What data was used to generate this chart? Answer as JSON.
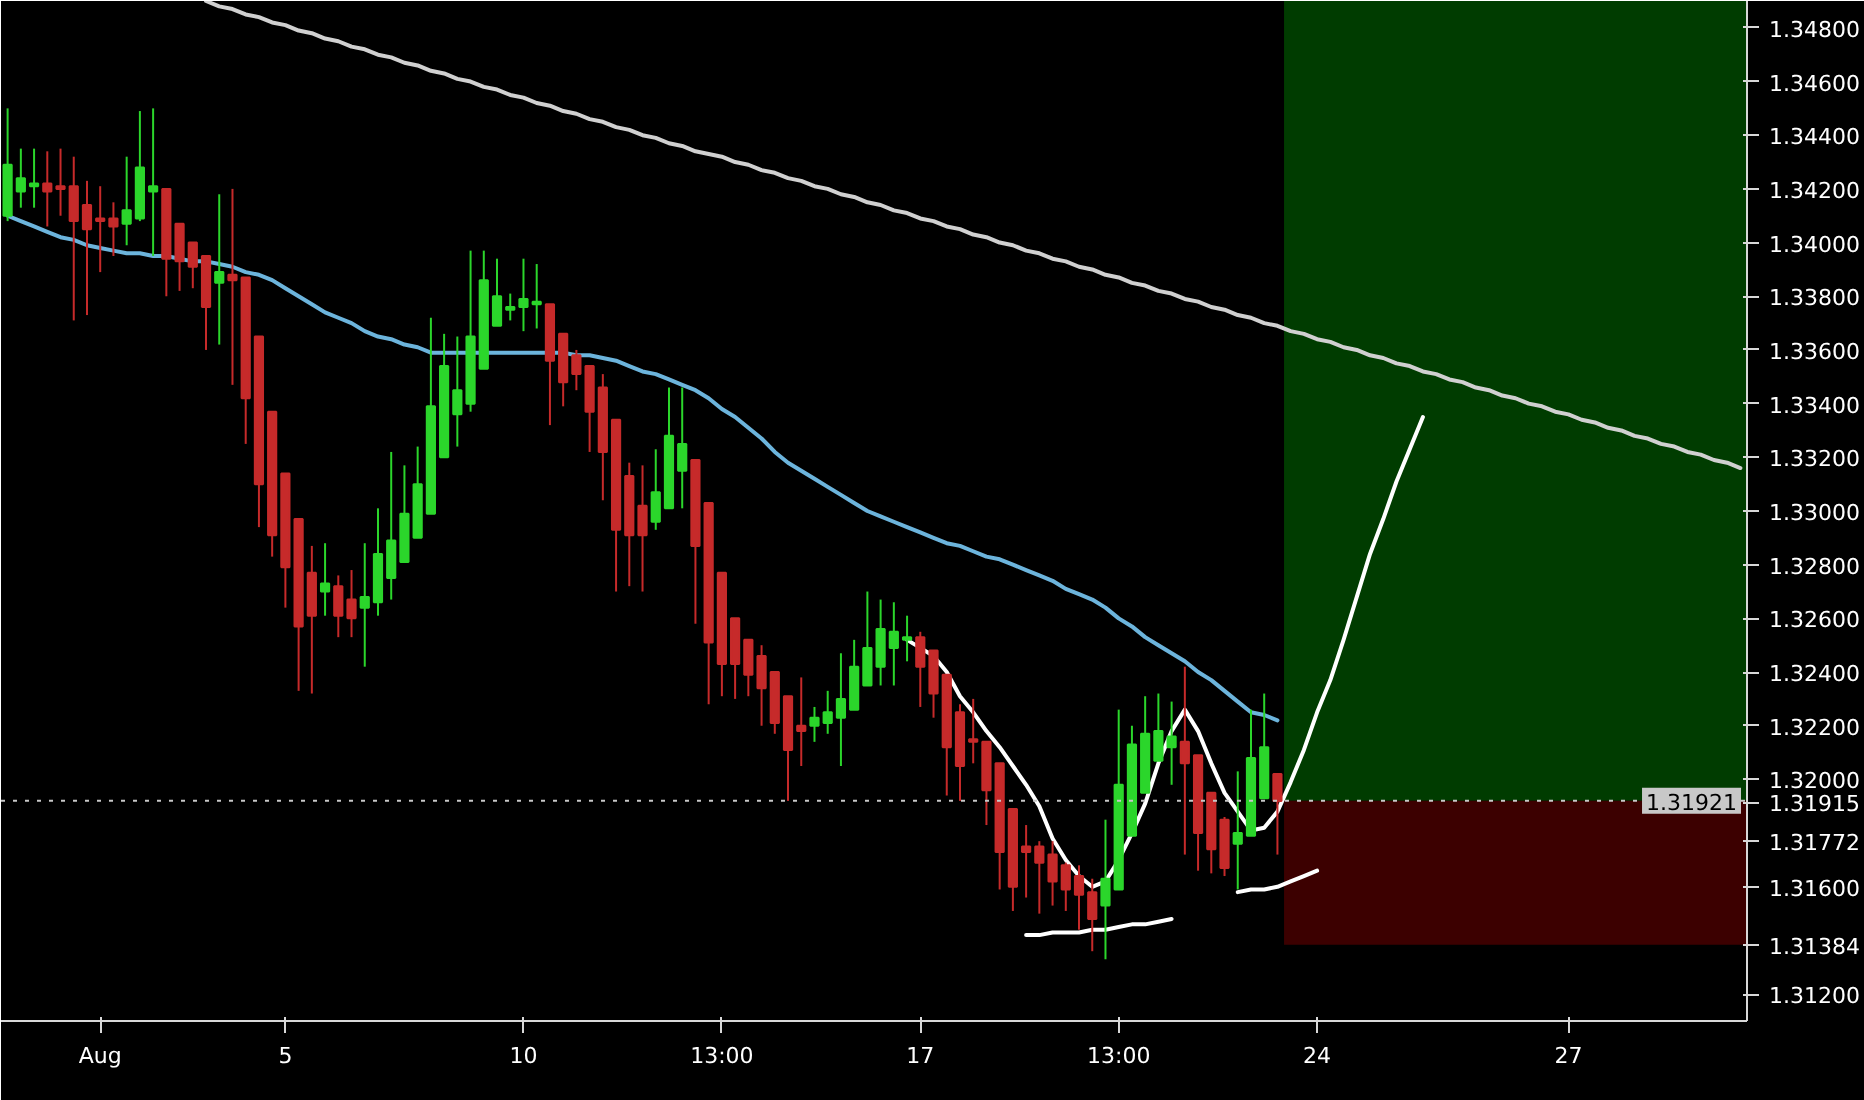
{
  "chart_data": {
    "type": "candlestick",
    "categories": [
      null,
      null,
      null,
      null,
      null,
      null,
      null,
      "Aug",
      null,
      null,
      null,
      null,
      null,
      null,
      null,
      null,
      null,
      null,
      null,
      null,
      null,
      "5",
      null,
      null,
      null,
      null,
      null,
      null,
      null,
      null,
      null,
      null,
      null,
      null,
      null,
      null,
      null,
      null,
      null,
      "10",
      null,
      null,
      null,
      null,
      null,
      null,
      null,
      null,
      null,
      null,
      null,
      null,
      null,
      null,
      "13:00",
      null,
      null,
      null,
      null,
      null,
      null,
      null,
      null,
      null,
      null,
      null,
      null,
      null,
      null,
      "17",
      null,
      null,
      null,
      null,
      null,
      null,
      null,
      null,
      null,
      null,
      null,
      null,
      null,
      null,
      "13:00",
      null,
      null,
      null,
      null,
      null,
      null,
      null,
      null,
      null,
      null,
      null,
      null,
      null,
      null,
      "24",
      null,
      null,
      null,
      null,
      null,
      null,
      null,
      null,
      null,
      null,
      null,
      null,
      null,
      null,
      null,
      null,
      null,
      null,
      "27",
      null,
      null,
      null,
      null,
      null,
      null,
      null,
      null,
      null,
      null,
      null,
      null,
      null
    ],
    "ohlc": [
      [
        1.341,
        1.345,
        1.3408,
        1.3429
      ],
      [
        1.3419,
        1.3435,
        1.3413,
        1.3424
      ],
      [
        1.3421,
        1.3435,
        1.3413,
        1.3422
      ],
      [
        1.3422,
        1.3434,
        1.3406,
        1.3419
      ],
      [
        1.3421,
        1.3435,
        1.341,
        1.342
      ],
      [
        1.3421,
        1.3432,
        1.3371,
        1.3408
      ],
      [
        1.3414,
        1.3423,
        1.3373,
        1.3405
      ],
      [
        1.3409,
        1.3421,
        1.3389,
        1.3408
      ],
      [
        1.3409,
        1.3415,
        1.3395,
        1.3406
      ],
      [
        1.3407,
        1.3432,
        1.3399,
        1.3412
      ],
      [
        1.3409,
        1.3449,
        1.3408,
        1.3428
      ],
      [
        1.3419,
        1.345,
        1.3395,
        1.3421
      ],
      [
        1.342,
        1.342,
        1.338,
        1.3394
      ],
      [
        1.3407,
        1.3407,
        1.3382,
        1.3393
      ],
      [
        1.34,
        1.34,
        1.3383,
        1.3391
      ],
      [
        1.3395,
        1.3395,
        1.336,
        1.3376
      ],
      [
        1.3385,
        1.3418,
        1.3362,
        1.3389
      ],
      [
        1.3388,
        1.342,
        1.3347,
        1.3386
      ],
      [
        1.3387,
        1.3387,
        1.3325,
        1.3342
      ],
      [
        1.3365,
        1.3365,
        1.3294,
        1.331
      ],
      [
        1.3337,
        1.3337,
        1.3283,
        1.3291
      ],
      [
        1.3314,
        1.3314,
        1.3264,
        1.3279
      ],
      [
        1.3297,
        1.3297,
        1.3233,
        1.3257
      ],
      [
        1.3277,
        1.3287,
        1.3232,
        1.3261
      ],
      [
        1.327,
        1.3288,
        1.3261,
        1.3273
      ],
      [
        1.3272,
        1.3276,
        1.3253,
        1.3261
      ],
      [
        1.3267,
        1.3278,
        1.3253,
        1.326
      ],
      [
        1.3264,
        1.3288,
        1.3242,
        1.3268
      ],
      [
        1.3266,
        1.3301,
        1.3261,
        1.3284
      ],
      [
        1.3275,
        1.3322,
        1.3267,
        1.3289
      ],
      [
        1.3281,
        1.3317,
        1.3281,
        1.3299
      ],
      [
        1.329,
        1.3324,
        1.329,
        1.331
      ],
      [
        1.3299,
        1.3372,
        1.3299,
        1.3339
      ],
      [
        1.332,
        1.3366,
        1.332,
        1.3354
      ],
      [
        1.3336,
        1.3365,
        1.3324,
        1.3345
      ],
      [
        1.334,
        1.3397,
        1.3337,
        1.3365
      ],
      [
        1.3353,
        1.3397,
        1.3353,
        1.3386
      ],
      [
        1.3369,
        1.3394,
        1.3369,
        1.338
      ],
      [
        1.3375,
        1.3381,
        1.3371,
        1.3376
      ],
      [
        1.3376,
        1.3394,
        1.3367,
        1.3379
      ],
      [
        1.3377,
        1.3392,
        1.3368,
        1.3378
      ],
      [
        1.3377,
        1.3377,
        1.3332,
        1.3356
      ],
      [
        1.3366,
        1.3366,
        1.3339,
        1.3348
      ],
      [
        1.3358,
        1.336,
        1.3345,
        1.3351
      ],
      [
        1.3354,
        1.3354,
        1.3322,
        1.3337
      ],
      [
        1.3346,
        1.3351,
        1.3304,
        1.3322
      ],
      [
        1.3334,
        1.3334,
        1.327,
        1.3293
      ],
      [
        1.3313,
        1.3318,
        1.3272,
        1.3291
      ],
      [
        1.3302,
        1.3317,
        1.327,
        1.3291
      ],
      [
        1.3296,
        1.3323,
        1.3293,
        1.3307
      ],
      [
        1.3301,
        1.3346,
        1.3301,
        1.3328
      ],
      [
        1.3315,
        1.3346,
        1.3301,
        1.3325
      ],
      [
        1.3319,
        1.3319,
        1.3258,
        1.3287
      ],
      [
        1.3303,
        1.3303,
        1.3228,
        1.3251
      ],
      [
        1.3277,
        1.3277,
        1.3231,
        1.3243
      ],
      [
        1.326,
        1.326,
        1.323,
        1.3243
      ],
      [
        1.3252,
        1.3252,
        1.3231,
        1.3239
      ],
      [
        1.3246,
        1.325,
        1.322,
        1.3234
      ],
      [
        1.324,
        1.324,
        1.3217,
        1.3221
      ],
      [
        1.3231,
        1.3231,
        1.3192,
        1.3211
      ],
      [
        1.322,
        1.3238,
        1.3205,
        1.3218
      ],
      [
        1.322,
        1.3227,
        1.3214,
        1.3223
      ],
      [
        1.3221,
        1.3233,
        1.3217,
        1.3225
      ],
      [
        1.3223,
        1.3247,
        1.3205,
        1.323
      ],
      [
        1.3226,
        1.3252,
        1.3226,
        1.3242
      ],
      [
        1.3235,
        1.327,
        1.3235,
        1.3249
      ],
      [
        1.3242,
        1.3267,
        1.3235,
        1.3256
      ],
      [
        1.3249,
        1.3266,
        1.3235,
        1.3255
      ],
      [
        1.3252,
        1.3261,
        1.3244,
        1.3253
      ],
      [
        1.3253,
        1.3255,
        1.3227,
        1.3242
      ],
      [
        1.3248,
        1.3248,
        1.3223,
        1.3232
      ],
      [
        1.3239,
        1.3239,
        1.3194,
        1.3212
      ],
      [
        1.3225,
        1.3228,
        1.3192,
        1.3205
      ],
      [
        1.3215,
        1.323,
        1.3206,
        1.3214
      ],
      [
        1.3214,
        1.3214,
        1.3183,
        1.3196
      ],
      [
        1.3206,
        1.3206,
        1.3159,
        1.3173
      ],
      [
        1.3189,
        1.3189,
        1.3151,
        1.316
      ],
      [
        1.3175,
        1.3183,
        1.3156,
        1.3173
      ],
      [
        1.3175,
        1.3177,
        1.315,
        1.3169
      ],
      [
        1.3172,
        1.3177,
        1.3153,
        1.3162
      ],
      [
        1.3168,
        1.3169,
        1.3151,
        1.3159
      ],
      [
        1.3164,
        1.3168,
        1.3144,
        1.3157
      ],
      [
        1.3158,
        1.3163,
        1.3136,
        1.3148
      ],
      [
        1.3153,
        1.3185,
        1.3133,
        1.3163
      ],
      [
        1.3159,
        1.3226,
        1.3159,
        1.3198
      ],
      [
        1.3179,
        1.322,
        1.3179,
        1.3213
      ],
      [
        1.3195,
        1.3231,
        1.3195,
        1.3217
      ],
      [
        1.3207,
        1.3232,
        1.3207,
        1.3218
      ],
      [
        1.3212,
        1.3229,
        1.3198,
        1.3216
      ],
      [
        1.3214,
        1.3242,
        1.3172,
        1.3206
      ],
      [
        1.3209,
        1.3209,
        1.3166,
        1.318
      ],
      [
        1.3195,
        1.3195,
        1.3165,
        1.3174
      ],
      [
        1.3185,
        1.3186,
        1.3164,
        1.3167
      ],
      [
        1.3176,
        1.3203,
        1.3159,
        1.318
      ],
      [
        1.3179,
        1.3226,
        1.3179,
        1.3208
      ],
      [
        1.3193,
        1.3232,
        1.3193,
        1.3212
      ],
      [
        1.3202,
        1.3202,
        1.3172,
        1.3192
      ],
      null,
      null,
      null,
      null,
      null,
      null,
      null,
      null,
      null,
      null,
      null,
      null,
      null,
      null,
      null,
      null,
      null,
      null,
      null,
      null,
      null,
      null,
      null,
      null,
      null,
      null,
      null,
      null,
      null,
      null,
      null,
      null,
      null,
      null,
      null
    ],
    "colors": [
      "#2bd62b",
      "#2bd62b",
      "#2bd62b",
      "#c62a2a",
      "#c62a2a",
      "#c62a2a",
      "#c62a2a",
      "#c62a2a",
      "#c62a2a",
      "#2bd62b",
      "#2bd62b",
      "#2bd62b",
      "#c62a2a",
      "#c62a2a",
      "#c62a2a",
      "#c62a2a",
      "#2bd62b",
      "#c62a2a",
      "#c62a2a",
      "#c62a2a",
      "#c62a2a",
      "#c62a2a",
      "#c62a2a",
      "#c62a2a",
      "#2bd62b",
      "#c62a2a",
      "#c62a2a",
      "#2bd62b",
      "#2bd62b",
      "#2bd62b",
      "#2bd62b",
      "#2bd62b",
      "#2bd62b",
      "#2bd62b",
      "#2bd62b",
      "#2bd62b",
      "#2bd62b",
      "#2bd62b",
      "#2bd62b",
      "#2bd62b",
      "#2bd62b",
      "#c62a2a",
      "#c62a2a",
      "#c62a2a",
      "#c62a2a",
      "#c62a2a",
      "#c62a2a",
      "#c62a2a",
      "#c62a2a",
      "#2bd62b",
      "#2bd62b",
      "#2bd62b",
      "#c62a2a",
      "#c62a2a",
      "#c62a2a",
      "#c62a2a",
      "#c62a2a",
      "#c62a2a",
      "#c62a2a",
      "#c62a2a",
      "#c62a2a",
      "#2bd62b",
      "#2bd62b",
      "#2bd62b",
      "#2bd62b",
      "#2bd62b",
      "#2bd62b",
      "#2bd62b",
      "#2bd62b",
      "#c62a2a",
      "#c62a2a",
      "#c62a2a",
      "#c62a2a",
      "#c62a2a",
      "#c62a2a",
      "#c62a2a",
      "#c62a2a",
      "#c62a2a",
      "#c62a2a",
      "#c62a2a",
      "#c62a2a",
      "#c62a2a",
      "#c62a2a",
      "#2bd62b",
      "#2bd62b",
      "#2bd62b",
      "#2bd62b",
      "#2bd62b",
      "#2bd62b",
      "#c62a2a",
      "#c62a2a",
      "#c62a2a",
      "#c62a2a",
      "#2bd62b",
      "#2bd62b",
      "#2bd62b",
      "#c62a2a",
      null,
      null,
      null,
      null,
      null,
      null,
      null,
      null,
      null,
      null,
      null,
      null,
      null,
      null,
      null,
      null,
      null,
      null,
      null,
      null,
      null,
      null,
      null,
      null,
      null,
      null,
      null,
      null,
      null,
      null,
      null,
      null,
      null,
      null,
      null
    ],
    "series": [
      {
        "type": "line",
        "color": "#6cb4dc",
        "values": [
          1.341,
          1.3408,
          1.3406,
          1.3404,
          1.3402,
          1.3401,
          1.3399,
          1.3398,
          1.3397,
          1.3396,
          1.3396,
          1.3395,
          1.3395,
          1.3394,
          1.3393,
          1.3393,
          1.3392,
          1.3391,
          1.3389,
          1.3388,
          1.3386,
          1.3383,
          1.338,
          1.3377,
          1.3374,
          1.3372,
          1.337,
          1.3367,
          1.3365,
          1.3364,
          1.3362,
          1.3361,
          1.3359,
          1.3359,
          1.3359,
          1.3359,
          1.3359,
          1.3359,
          1.3359,
          1.3359,
          1.3359,
          1.3359,
          1.3359,
          1.3358,
          1.3358,
          1.3357,
          1.3356,
          1.3354,
          1.3352,
          1.3351,
          1.3349,
          1.3347,
          1.3345,
          1.3342,
          1.3338,
          1.3335,
          1.3331,
          1.3327,
          1.3322,
          1.3318,
          1.3315,
          1.3312,
          1.3309,
          1.3306,
          1.3303,
          1.33,
          1.3298,
          1.3296,
          1.3294,
          1.3292,
          1.329,
          1.3288,
          1.3287,
          1.3285,
          1.3283,
          1.3282,
          1.328,
          1.3278,
          1.3276,
          1.3274,
          1.3271,
          1.3269,
          1.3267,
          1.3264,
          1.326,
          1.3257,
          1.3253,
          1.325,
          1.3247,
          1.3244,
          1.324,
          1.3237,
          1.3233,
          1.3229,
          1.3225,
          1.3224,
          1.3222,
          null,
          null,
          null,
          null,
          null,
          null,
          null,
          null,
          null,
          null,
          null,
          null,
          null,
          null,
          null,
          null,
          null,
          null,
          null,
          null,
          null,
          null,
          null,
          null,
          null,
          null,
          null,
          null,
          null,
          null,
          null,
          null,
          null,
          null,
          null
        ]
      },
      {
        "type": "line",
        "color": "#d0d0d0",
        "values": [
          null,
          null,
          null,
          null,
          null,
          null,
          null,
          null,
          null,
          null,
          null,
          null,
          null,
          null,
          null,
          1.349,
          1.3488,
          1.3487,
          1.3485,
          1.3484,
          1.3482,
          1.3481,
          1.3479,
          1.3478,
          1.3476,
          1.3475,
          1.3473,
          1.3472,
          1.347,
          1.3469,
          1.3467,
          1.3466,
          1.3464,
          1.3463,
          1.3461,
          1.346,
          1.3458,
          1.3457,
          1.3455,
          1.3454,
          1.3452,
          1.3451,
          1.3449,
          1.3448,
          1.3446,
          1.3445,
          1.3443,
          1.3442,
          1.344,
          1.3439,
          1.3437,
          1.3436,
          1.3434,
          1.3433,
          1.3432,
          1.343,
          1.3429,
          1.3427,
          1.3426,
          1.3424,
          1.3423,
          1.3421,
          1.342,
          1.3418,
          1.3417,
          1.3415,
          1.3414,
          1.3412,
          1.3411,
          1.3409,
          1.3408,
          1.3406,
          1.3405,
          1.3403,
          1.3402,
          1.34,
          1.3399,
          1.3397,
          1.3396,
          1.3394,
          1.3393,
          1.3391,
          1.339,
          1.3388,
          1.3387,
          1.3385,
          1.3384,
          1.3382,
          1.3381,
          1.3379,
          1.3378,
          1.3376,
          1.3375,
          1.3373,
          1.3372,
          1.337,
          1.3369,
          1.3367,
          1.3366,
          1.3364,
          1.3363,
          1.3361,
          1.336,
          1.3358,
          1.3357,
          1.3355,
          1.3354,
          1.3352,
          1.3351,
          1.3349,
          1.3348,
          1.3346,
          1.3345,
          1.3343,
          1.3342,
          1.334,
          1.3339,
          1.3337,
          1.3336,
          1.3334,
          1.3333,
          1.3331,
          1.333,
          1.3328,
          1.3327,
          1.3325,
          1.3324,
          1.3322,
          1.3321,
          1.3319,
          1.3318,
          1.3316
        ]
      },
      {
        "type": "line",
        "color": "#ffffff",
        "values": [
          null,
          null,
          null,
          null,
          null,
          null,
          null,
          null,
          null,
          null,
          null,
          null,
          null,
          null,
          null,
          null,
          null,
          null,
          null,
          null,
          null,
          null,
          null,
          null,
          null,
          null,
          null,
          null,
          null,
          null,
          null,
          null,
          null,
          null,
          null,
          null,
          null,
          null,
          null,
          null,
          null,
          null,
          null,
          null,
          null,
          null,
          null,
          null,
          null,
          null,
          null,
          null,
          null,
          null,
          null,
          null,
          null,
          null,
          null,
          null,
          null,
          null,
          null,
          null,
          null,
          null,
          null,
          null,
          1.3252,
          1.3249,
          1.3246,
          1.324,
          1.3231,
          1.3225,
          1.3218,
          1.3212,
          1.3205,
          1.3198,
          1.319,
          1.3178,
          1.317,
          1.3164,
          1.316,
          1.3162,
          1.317,
          1.318,
          1.3191,
          1.3206,
          1.3218,
          1.3226,
          1.3218,
          1.3206,
          1.3195,
          1.3188,
          1.3181,
          1.3182,
          1.3188,
          1.3199,
          1.3211,
          1.3225,
          1.3237,
          1.3252,
          1.3268,
          1.3284,
          1.3297,
          1.3311,
          1.3323,
          1.3335,
          null,
          null,
          null,
          null,
          null,
          null,
          null,
          null,
          null,
          null,
          null,
          null,
          null,
          null,
          null,
          null,
          null,
          null,
          null,
          null,
          null,
          null,
          null,
          null
        ]
      },
      {
        "type": "line",
        "color": "#ffffff",
        "values": [
          null,
          null,
          null,
          null,
          null,
          null,
          null,
          null,
          null,
          null,
          null,
          null,
          null,
          null,
          null,
          null,
          null,
          null,
          null,
          null,
          null,
          null,
          null,
          null,
          null,
          null,
          null,
          null,
          null,
          null,
          null,
          null,
          null,
          null,
          null,
          null,
          null,
          null,
          null,
          null,
          null,
          null,
          null,
          null,
          null,
          null,
          null,
          null,
          null,
          null,
          null,
          null,
          null,
          null,
          null,
          null,
          null,
          null,
          null,
          null,
          null,
          null,
          null,
          null,
          null,
          null,
          null,
          null,
          null,
          null,
          null,
          null,
          null,
          null,
          null,
          null,
          null,
          1.3142,
          1.3142,
          1.3143,
          1.3143,
          1.3143,
          1.3144,
          1.3144,
          1.3145,
          1.3146,
          1.3146,
          1.3147,
          1.3148,
          null,
          null,
          null,
          null,
          null,
          null,
          null,
          null,
          null,
          null,
          null,
          null,
          null,
          null,
          null,
          null,
          null,
          null,
          null,
          null,
          null,
          null,
          null,
          null,
          null,
          null,
          null,
          null,
          null,
          null,
          null,
          null,
          null,
          null,
          null,
          null,
          null,
          null,
          null,
          null,
          null,
          null,
          null
        ]
      },
      {
        "type": "line",
        "color": "#ffffff",
        "values": [
          null,
          null,
          null,
          null,
          null,
          null,
          null,
          null,
          null,
          null,
          null,
          null,
          null,
          null,
          null,
          null,
          null,
          null,
          null,
          null,
          null,
          null,
          null,
          null,
          null,
          null,
          null,
          null,
          null,
          null,
          null,
          null,
          null,
          null,
          null,
          null,
          null,
          null,
          null,
          null,
          null,
          null,
          null,
          null,
          null,
          null,
          null,
          null,
          null,
          null,
          null,
          null,
          null,
          null,
          null,
          null,
          null,
          null,
          null,
          null,
          null,
          null,
          null,
          null,
          null,
          null,
          null,
          null,
          null,
          null,
          null,
          null,
          null,
          null,
          null,
          null,
          null,
          null,
          null,
          null,
          null,
          null,
          null,
          null,
          null,
          null,
          null,
          null,
          null,
          null,
          null,
          null,
          null,
          1.3158,
          1.3159,
          1.3159,
          1.316,
          1.3162,
          1.3164,
          1.3166,
          null,
          null,
          null,
          null,
          null,
          null,
          null,
          null,
          null,
          null,
          null,
          null,
          null,
          null,
          null,
          null,
          null,
          null,
          null,
          null,
          null,
          null,
          null,
          null,
          null,
          null,
          null,
          null,
          null,
          null,
          null,
          null
        ]
      }
    ],
    "bands": [
      {
        "axis": "y",
        "from": 1.31921,
        "to": 1.349,
        "color": "#003c00"
      },
      {
        "axis": "y",
        "from": 1.31384,
        "to": 1.31921,
        "color": "#3c0000",
        "label": "1.31384"
      }
    ],
    "ref_lines": [
      {
        "axis": "y",
        "value": 1.31921,
        "label": "1.31921",
        "color": "#c8c8c8",
        "line_style": "dotted"
      }
    ],
    "ylim": [
      1.311,
      1.349
    ],
    "yticks": [
      {
        "value": 1.312,
        "label": "1.31200"
      },
      {
        "value": 1.316,
        "label": "1.31600"
      },
      {
        "value": 1.31772,
        "label": "1.31772"
      },
      {
        "value": 1.31915,
        "label": "1.31915"
      },
      {
        "value": 1.32,
        "label": "1.32000"
      },
      {
        "value": 1.322,
        "label": "1.32200"
      },
      {
        "value": 1.324,
        "label": "1.32400"
      },
      {
        "value": 1.326,
        "label": "1.32600"
      },
      {
        "value": 1.328,
        "label": "1.32800"
      },
      {
        "value": 1.33,
        "label": "1.33000"
      },
      {
        "value": 1.332,
        "label": "1.33200"
      },
      {
        "value": 1.334,
        "label": "1.33400"
      },
      {
        "value": 1.336,
        "label": "1.33600"
      },
      {
        "value": 1.338,
        "label": "1.33800"
      },
      {
        "value": 1.34,
        "label": "1.34000"
      },
      {
        "value": 1.342,
        "label": "1.34200"
      },
      {
        "value": 1.344,
        "label": "1.34400"
      },
      {
        "value": 1.346,
        "label": "1.34600"
      },
      {
        "value": 1.348,
        "label": "1.34800"
      }
    ]
  }
}
